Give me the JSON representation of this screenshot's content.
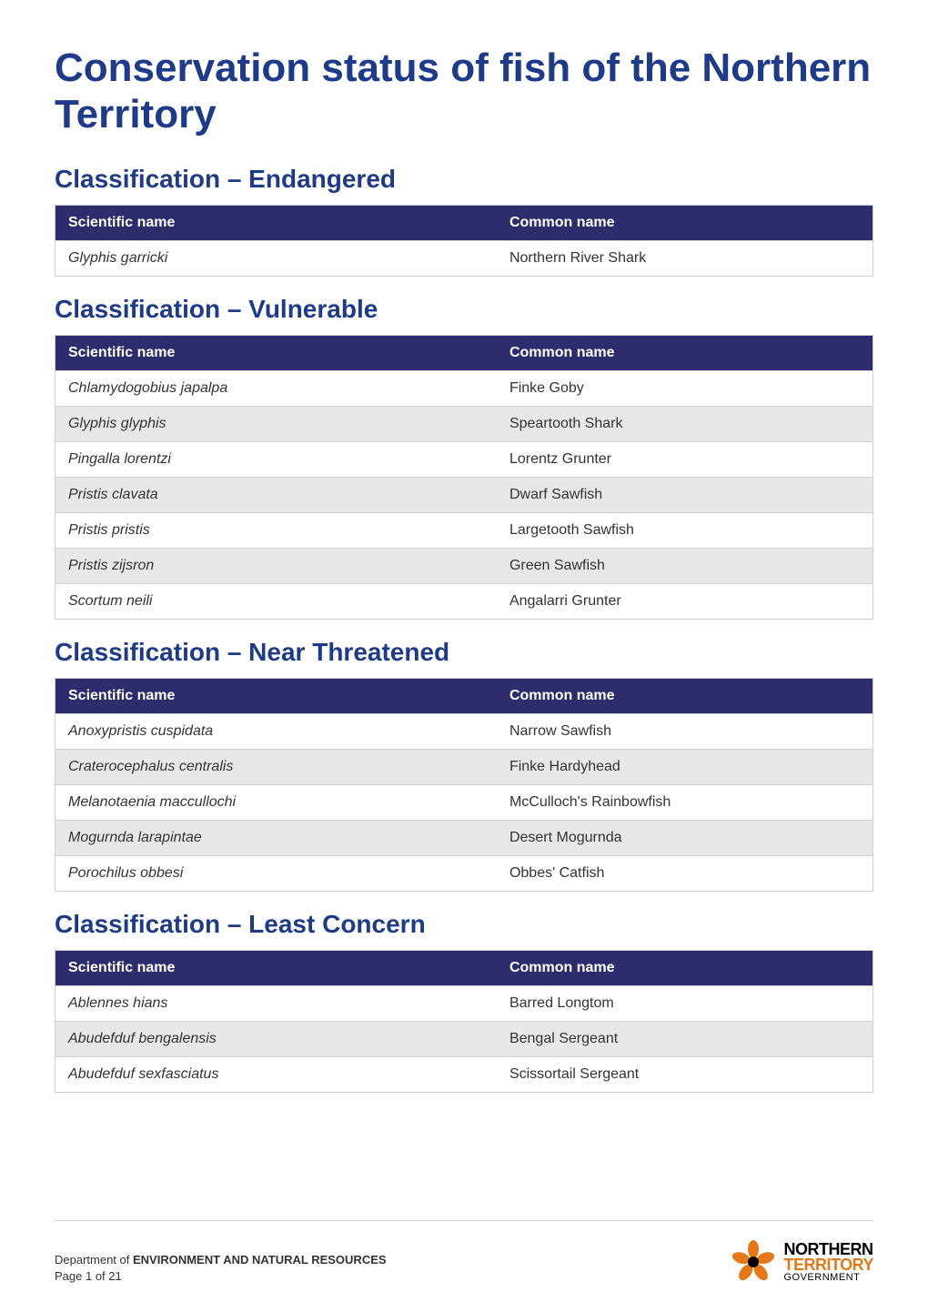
{
  "title": "Conservation status of fish of the Northern Territory",
  "sections": [
    {
      "heading": "Classification – Endangered",
      "headers": [
        "Scientific name",
        "Common name"
      ],
      "rows": [
        {
          "sci": "Glyphis garricki",
          "com": "Northern River Shark",
          "alt": false
        }
      ]
    },
    {
      "heading": "Classification – Vulnerable",
      "headers": [
        "Scientific name",
        "Common name"
      ],
      "rows": [
        {
          "sci": "Chlamydogobius japalpa",
          "com": "Finke Goby",
          "alt": false
        },
        {
          "sci": "Glyphis glyphis",
          "com": "Speartooth Shark",
          "alt": true
        },
        {
          "sci": "Pingalla lorentzi",
          "com": "Lorentz Grunter",
          "alt": false
        },
        {
          "sci": "Pristis clavata",
          "com": "Dwarf Sawfish",
          "alt": true
        },
        {
          "sci": "Pristis pristis",
          "com": "Largetooth Sawfish",
          "alt": false
        },
        {
          "sci": "Pristis zijsron",
          "com": "Green Sawfish",
          "alt": true
        },
        {
          "sci": "Scortum neili",
          "com": "Angalarri Grunter",
          "alt": false
        }
      ]
    },
    {
      "heading": "Classification – Near Threatened",
      "headers": [
        "Scientific name",
        "Common name"
      ],
      "rows": [
        {
          "sci": "Anoxypristis cuspidata",
          "com": "Narrow Sawfish",
          "alt": false
        },
        {
          "sci": "Craterocephalus centralis",
          "com": "Finke Hardyhead",
          "alt": true
        },
        {
          "sci": "Melanotaenia maccullochi",
          "com": "McCulloch's Rainbowfish",
          "alt": false
        },
        {
          "sci": "Mogurnda larapintae",
          "com": "Desert Mogurnda",
          "alt": true
        },
        {
          "sci": "Porochilus obbesi",
          "com": "Obbes' Catfish",
          "alt": false
        }
      ]
    },
    {
      "heading": "Classification – Least Concern",
      "headers": [
        "Scientific name",
        "Common name"
      ],
      "rows": [
        {
          "sci": "Ablennes hians",
          "com": "Barred Longtom",
          "alt": false
        },
        {
          "sci": "Abudefduf bengalensis",
          "com": "Bengal Sergeant",
          "alt": true
        },
        {
          "sci": "Abudefduf sexfasciatus",
          "com": "Scissortail Sergeant",
          "alt": false
        }
      ]
    }
  ],
  "footer": {
    "department_prefix": "Department of ",
    "department_name": "ENVIRONMENT AND NATURAL RESOURCES",
    "page": "Page 1 of 21",
    "logo": {
      "line1": "NORTHERN",
      "line2": "TERRITORY",
      "line3": "GOVERNMENT",
      "petal_color": "#e67817",
      "center_color": "#000000"
    }
  },
  "colors": {
    "heading": "#1e3a8a",
    "th_bg": "#2d2d6e",
    "th_text": "#ffffff",
    "alt_row": "#e8e8e8",
    "border": "#d0d0d0",
    "text": "#333333"
  }
}
